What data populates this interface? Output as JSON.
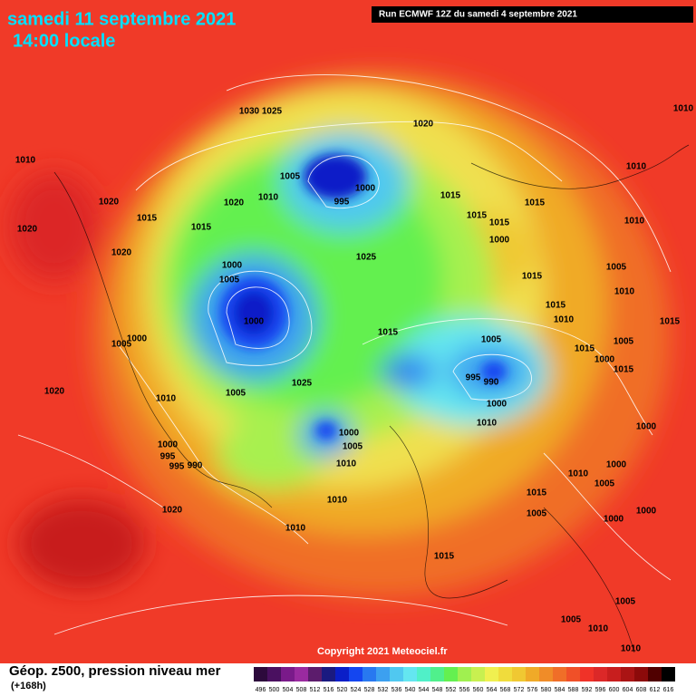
{
  "map": {
    "header": {
      "title": "samedi 11 septembre 2021",
      "subtitle": "14:00 locale",
      "run": "Run ECMWF 12Z du samedi 4 septembre 2021"
    },
    "copyright": "Copyright 2021 Meteociel.fr",
    "footer": {
      "product": "Géop. z500, pression niveau mer",
      "lead": "(+168h)"
    },
    "pressure_labels": [
      1030,
      1025,
      1020,
      1010,
      1005,
      995,
      1000,
      1010,
      1020,
      1020,
      1015,
      1015,
      1020,
      1020,
      1000,
      1005,
      1000,
      1025,
      1015,
      1015,
      1015,
      1000,
      1015,
      1010,
      1010,
      1010,
      1005,
      1010,
      1015,
      1015,
      1010,
      1015,
      1005,
      995,
      990,
      1000,
      1010,
      1005,
      1000,
      1015,
      1015,
      1000,
      1010,
      1005,
      1025,
      1020,
      1000,
      1005,
      1010,
      1000,
      995,
      995,
      990,
      1010,
      1005,
      1000,
      1015,
      1005,
      1000,
      1000,
      1020,
      1010,
      1010,
      1015,
      1005,
      1005,
      1010,
      1010,
      1015,
      1005,
      1000
    ],
    "legend": {
      "labels": [
        496,
        500,
        504,
        508,
        512,
        516,
        520,
        524,
        528,
        532,
        536,
        540,
        544,
        548,
        552,
        556,
        560,
        564,
        568,
        572,
        576,
        580,
        584,
        588,
        592,
        596,
        600,
        604,
        608,
        612,
        616
      ],
      "colors": [
        "#2d0a3c",
        "#4a1060",
        "#7a1a8a",
        "#9a2aa0",
        "#5c1c6c",
        "#1a1a80",
        "#0a1ec8",
        "#1446f0",
        "#2878f0",
        "#3ca0f0",
        "#50c8f0",
        "#64e6f0",
        "#50f0c8",
        "#50f08c",
        "#64f050",
        "#a0f050",
        "#c8f050",
        "#f0f050",
        "#f0dc3c",
        "#f0c832",
        "#f0aa28",
        "#f08c28",
        "#f06e28",
        "#f05028",
        "#f03228",
        "#dc2828",
        "#c81e1e",
        "#aa1414",
        "#8c0a0a",
        "#500000",
        "#000000"
      ]
    }
  }
}
